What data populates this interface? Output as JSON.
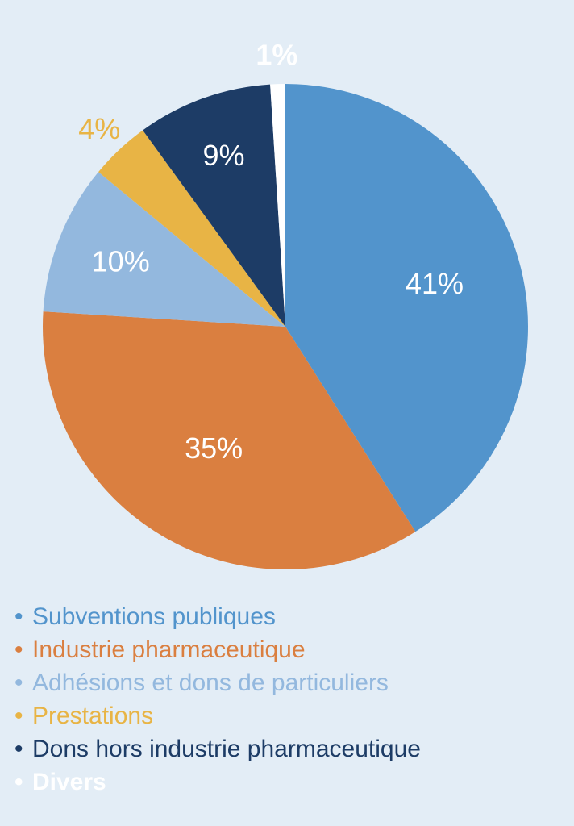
{
  "chart_data": {
    "type": "pie",
    "slices": [
      {
        "label": "Subventions publiques",
        "value": 41,
        "display": "41%",
        "color": "#5294cc",
        "label_color": "#ffffff",
        "label_weight": "normal"
      },
      {
        "label": "Industrie pharmaceutique",
        "value": 35,
        "display": "35%",
        "color": "#da7f40",
        "label_color": "#ffffff",
        "label_weight": "normal"
      },
      {
        "label": "Adhésions et dons de particuliers",
        "value": 10,
        "display": "10%",
        "color": "#93b8de",
        "label_color": "#ffffff",
        "label_weight": "normal"
      },
      {
        "label": "Prestations",
        "value": 4,
        "display": "4%",
        "color": "#e8b445",
        "label_color": "#e8b445",
        "label_weight": "normal"
      },
      {
        "label": "Dons hors industrie pharmaceutique",
        "value": 9,
        "display": "9%",
        "color": "#1d3c66",
        "label_color": "#ffffff",
        "label_weight": "normal"
      },
      {
        "label": "Divers",
        "value": 1,
        "display": "1%",
        "color": "#ffffff",
        "label_color": "#ffffff",
        "label_weight": "bold"
      }
    ],
    "legend_placement": "bottom",
    "legend_bullet": "•"
  },
  "colors": {
    "background": "#e3edf6"
  }
}
